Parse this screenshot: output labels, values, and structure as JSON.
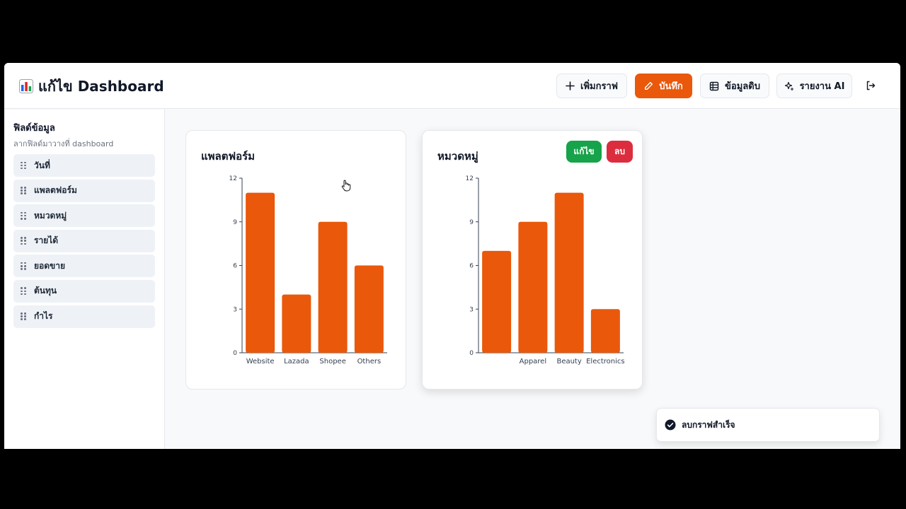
{
  "app": {
    "title": "แก้ไข Dashboard",
    "logo_icon": "bar-chart-emoji-icon"
  },
  "header": {
    "add_chart_label": "เพิ่มกราฟ",
    "save_label": "บันทึก",
    "raw_data_label": "ข้อมูลดิบ",
    "ai_report_label": "รายงาน AI",
    "logout_icon": "logout-icon"
  },
  "sidebar": {
    "title": "ฟิลด์ข้อมูล",
    "subtitle": "ลากฟิลด์มาวางที่ dashboard",
    "fields": [
      "วันที่",
      "แพลตฟอร์ม",
      "หมวดหมู่",
      "รายได้",
      "ยอดขาย",
      "ต้นทุน",
      "กำไร"
    ]
  },
  "cards": [
    {
      "title": "แพลตฟอร์ม"
    },
    {
      "title": "หมวดหมู่",
      "edit_label": "แก้ไข",
      "delete_label": "ลบ"
    }
  ],
  "toast": {
    "message": "ลบกราฟสำเร็จ",
    "icon": "check-circle-icon"
  },
  "colors": {
    "accent": "#ea580c",
    "bar": "#ea580c",
    "edit": "#16a34a",
    "delete": "#dc2d3f"
  },
  "chart_data": [
    {
      "type": "bar",
      "title": "แพลตฟอร์ม",
      "categories": [
        "Website",
        "Lazada",
        "Shopee",
        "Others"
      ],
      "values": [
        11,
        4,
        9,
        6
      ],
      "yticks": [
        0,
        3,
        6,
        9,
        12
      ],
      "ylim": [
        0,
        12
      ],
      "grid": false,
      "color": "#ea580c"
    },
    {
      "type": "bar",
      "title": "หมวดหมู่",
      "categories": [
        "",
        "Apparel",
        "Beauty",
        "Electronics"
      ],
      "values": [
        7,
        9,
        11,
        3
      ],
      "yticks": [
        0,
        3,
        6,
        9,
        12
      ],
      "ylim": [
        0,
        12
      ],
      "grid": false,
      "color": "#ea580c"
    }
  ]
}
